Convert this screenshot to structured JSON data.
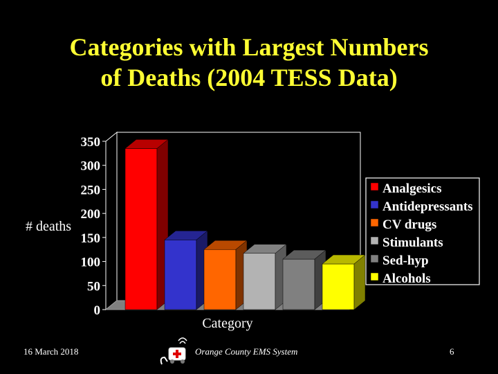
{
  "slide": {
    "title_line1": "Categories with Largest Numbers",
    "title_line2": "of Deaths (2004 TESS Data)"
  },
  "chart_data": {
    "type": "bar",
    "style": "3d-column",
    "categories": [
      "Analgesics",
      "Antidepressants",
      "CV drugs",
      "Stimulants",
      "Sed-hyp",
      "Alcohols"
    ],
    "values": [
      335,
      145,
      125,
      117,
      105,
      95
    ],
    "colors": [
      "#FF0000",
      "#3333CC",
      "#FF6600",
      "#B3B3B3",
      "#808080",
      "#FFFF00"
    ],
    "xlabel": "Category",
    "ylabel": "# deaths",
    "ylim": [
      0,
      350
    ],
    "yticks": [
      0,
      50,
      100,
      150,
      200,
      250,
      300,
      350
    ],
    "grid": false,
    "legend": {
      "placement": "right",
      "entries": [
        "Analgesics",
        "Antidepressants",
        "CV drugs",
        "Stimulants",
        "Sed-hyp",
        "Alcohols"
      ]
    },
    "background": "#000000"
  },
  "footer": {
    "date": "16 March 2018",
    "organization": "Orange County EMS System",
    "page_number": "6"
  }
}
